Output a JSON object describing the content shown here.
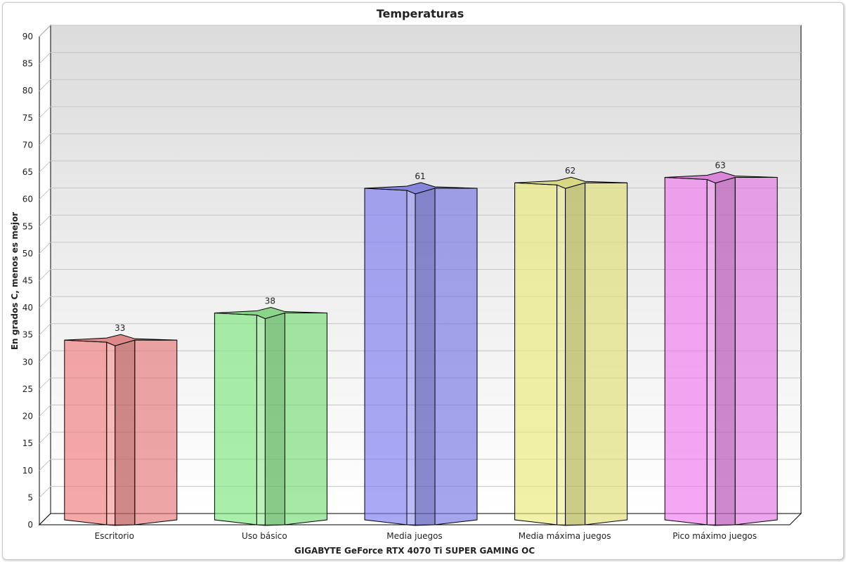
{
  "chart_data": {
    "type": "bar",
    "title": "Temperaturas",
    "xlabel": "GIGABYTE GeForce RTX 4070 Ti SUPER GAMING OC",
    "ylabel": "En grados C, menos es mejor",
    "ylim": [
      0,
      90
    ],
    "ytick_step": 5,
    "categories": [
      "Escritorio",
      "Uso básico",
      "Media juegos",
      "Media máxima juegos",
      "Pico máximo juegos"
    ],
    "values": [
      33,
      38,
      61,
      62,
      63
    ],
    "colors": [
      "#f07a7a",
      "#7be67b",
      "#7a7af0",
      "#eaea7a",
      "#ee7aee"
    ],
    "grid": true,
    "legend": "none"
  }
}
